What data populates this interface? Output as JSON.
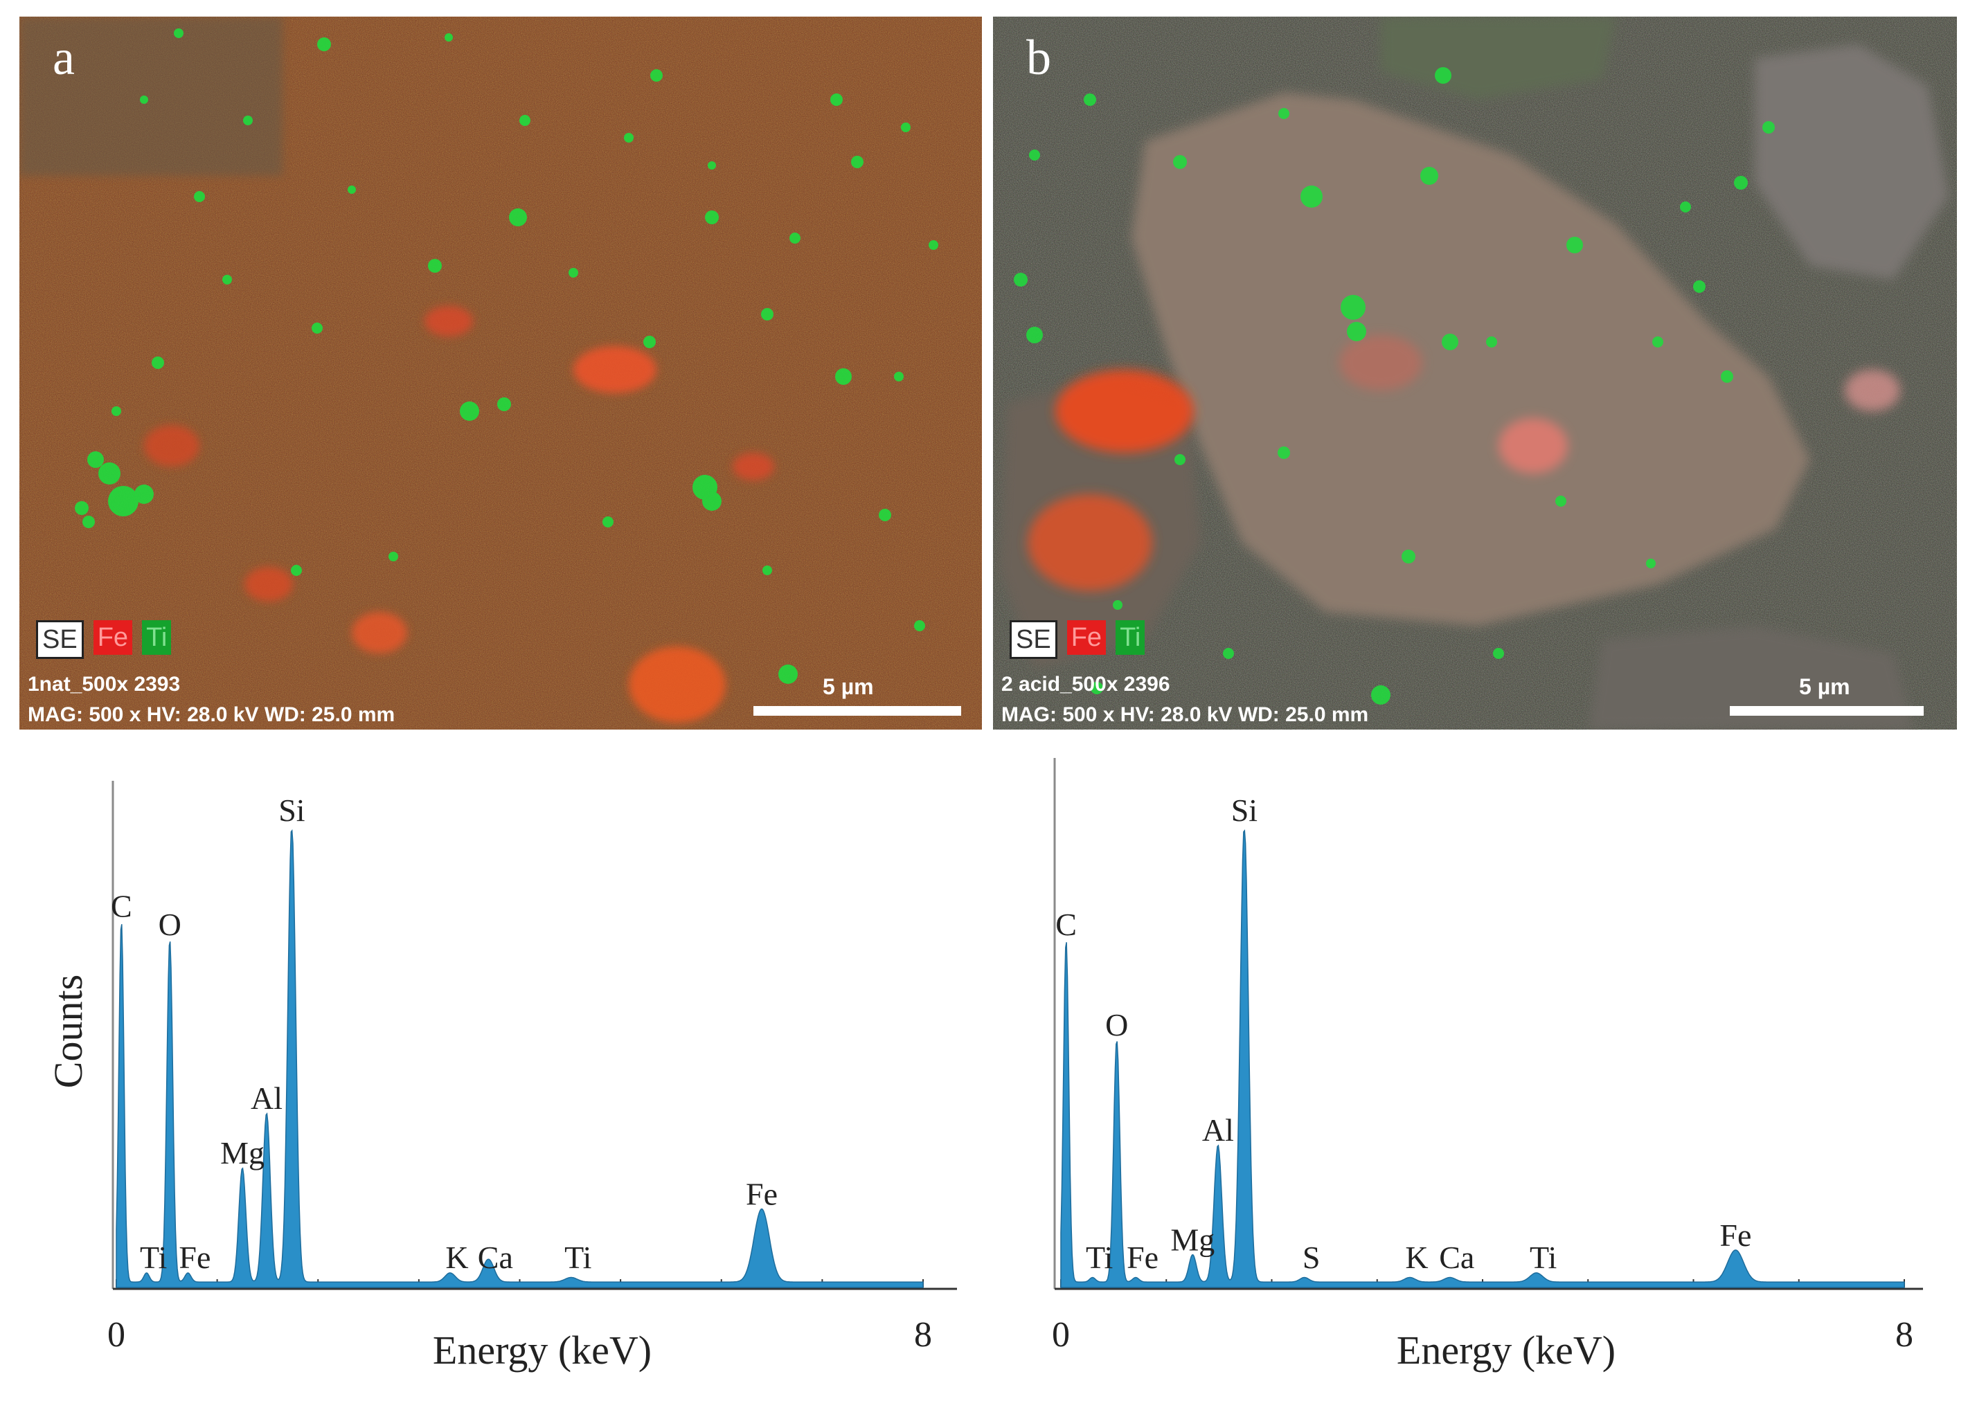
{
  "panels": [
    {
      "letter": "a",
      "legend": {
        "se": "SE",
        "fe": "Fe",
        "ti": "Ti"
      },
      "sample_label": "1nat_500x 2393",
      "acquisition": "MAG: 500 x  HV: 28.0 kV  WD: 25.0 mm",
      "scale_bar_label": "5 µm"
    },
    {
      "letter": "b",
      "legend": {
        "se": "SE",
        "fe": "Fe",
        "ti": "Ti"
      },
      "sample_label": "2 acid_500x 2396",
      "acquisition": "MAG: 500 x  HV: 28.0 kV  WD: 25.0 mm",
      "scale_bar_label": "5 µm"
    }
  ],
  "colors": {
    "spectrum_fill": "#2a8fc8",
    "fe_map": "#e51e1e",
    "ti_map": "#15a22d"
  },
  "chart_data": [
    {
      "type": "area",
      "ylabel": "Counts",
      "xlabel": "Energy (keV)",
      "x_ticks": [
        "0",
        "8"
      ],
      "xlim": [
        0,
        8
      ],
      "series": [
        {
          "peaks": [
            {
              "label": "C",
              "x": 0.05,
              "y": 0.79
            },
            {
              "label": "Ti",
              "x": 0.3,
              "y": 0.02
            },
            {
              "label": "O",
              "x": 0.53,
              "y": 0.75
            },
            {
              "label": "Fe",
              "x": 0.71,
              "y": 0.02
            },
            {
              "label": "Mg",
              "x": 1.25,
              "y": 0.25
            },
            {
              "label": "Al",
              "x": 1.49,
              "y": 0.37
            },
            {
              "label": "Si",
              "x": 1.74,
              "y": 1.0
            },
            {
              "label": "K",
              "x": 3.31,
              "y": 0.02
            },
            {
              "label": "Ca",
              "x": 3.69,
              "y": 0.05
            },
            {
              "label": "Ti",
              "x": 4.51,
              "y": 0.01
            },
            {
              "label": "Fe",
              "x": 6.4,
              "y": 0.16
            }
          ]
        }
      ]
    },
    {
      "type": "area",
      "ylabel": "",
      "xlabel": "Energy (keV)",
      "x_ticks": [
        "0",
        "8"
      ],
      "xlim": [
        0,
        8
      ],
      "series": [
        {
          "peaks": [
            {
              "label": "C",
              "x": 0.05,
              "y": 0.75
            },
            {
              "label": "Ti",
              "x": 0.3,
              "y": 0.01
            },
            {
              "label": "O",
              "x": 0.53,
              "y": 0.53
            },
            {
              "label": "Fe",
              "x": 0.71,
              "y": 0.01
            },
            {
              "label": "Mg",
              "x": 1.25,
              "y": 0.06
            },
            {
              "label": "Al",
              "x": 1.49,
              "y": 0.3
            },
            {
              "label": "Si",
              "x": 1.74,
              "y": 1.0
            },
            {
              "label": "S",
              "x": 2.31,
              "y": 0.01
            },
            {
              "label": "K",
              "x": 3.31,
              "y": 0.01
            },
            {
              "label": "Ca",
              "x": 3.69,
              "y": 0.01
            },
            {
              "label": "Ti",
              "x": 4.51,
              "y": 0.02
            },
            {
              "label": "Fe",
              "x": 6.4,
              "y": 0.07
            }
          ]
        }
      ]
    }
  ]
}
